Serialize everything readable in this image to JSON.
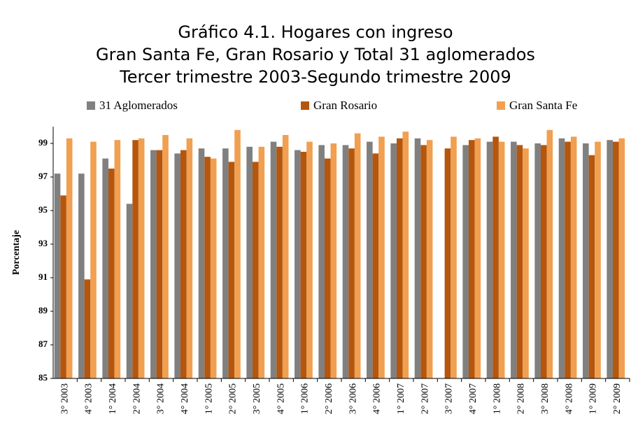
{
  "chart_data": {
    "type": "bar",
    "title": [
      "Gráfico 4.1. Hogares con ingreso",
      "Gran Santa Fe, Gran Rosario y Total 31 aglomerados",
      "Tercer trimestre 2003-Segundo trimestre 2009"
    ],
    "y_label": "Porcentaje",
    "categories": [
      "3° 2003",
      "4° 2003",
      "1° 2004",
      "2° 2004",
      "3° 2004",
      "4° 2004",
      "1° 2005",
      "2° 2005",
      "3° 2005",
      "4° 2005",
      "1° 2006",
      "2° 2006",
      "3° 2006",
      "4° 2006",
      "1° 2007",
      "2° 2007",
      "3° 2007",
      "4° 2007",
      "1° 2008",
      "2° 2008",
      "3° 2008",
      "4° 2008",
      "1° 2009",
      "2° 2009"
    ],
    "series": [
      {
        "name": "31 Aglomerados",
        "color": "#808080",
        "values": [
          97.2,
          97.2,
          98.1,
          95.4,
          98.6,
          98.4,
          98.7,
          98.7,
          98.8,
          99.1,
          98.6,
          98.9,
          98.9,
          99.1,
          99.0,
          99.3,
          null,
          98.9,
          99.1,
          99.1,
          99.0,
          99.3,
          99.0,
          99.2
        ]
      },
      {
        "name": "Gran Rosario",
        "color": "#b5560e",
        "values": [
          95.9,
          90.9,
          97.5,
          99.2,
          98.6,
          98.6,
          98.2,
          97.9,
          97.9,
          98.8,
          98.5,
          98.1,
          98.7,
          98.4,
          99.3,
          98.9,
          98.7,
          99.2,
          99.4,
          98.9,
          98.9,
          99.1,
          98.3,
          99.1
        ]
      },
      {
        "name": "Gran Santa Fe",
        "color": "#f0a050",
        "values": [
          99.3,
          99.1,
          99.2,
          99.3,
          99.5,
          99.3,
          98.1,
          99.8,
          98.8,
          99.5,
          99.1,
          99.0,
          99.6,
          99.4,
          99.7,
          99.2,
          99.4,
          99.3,
          99.1,
          98.7,
          99.8,
          99.4,
          99.1,
          99.3
        ]
      }
    ],
    "ylim": [
      85,
      100
    ],
    "yticks": [
      85,
      87,
      89,
      91,
      93,
      95,
      97,
      99
    ],
    "grid": false,
    "legend": "top"
  }
}
